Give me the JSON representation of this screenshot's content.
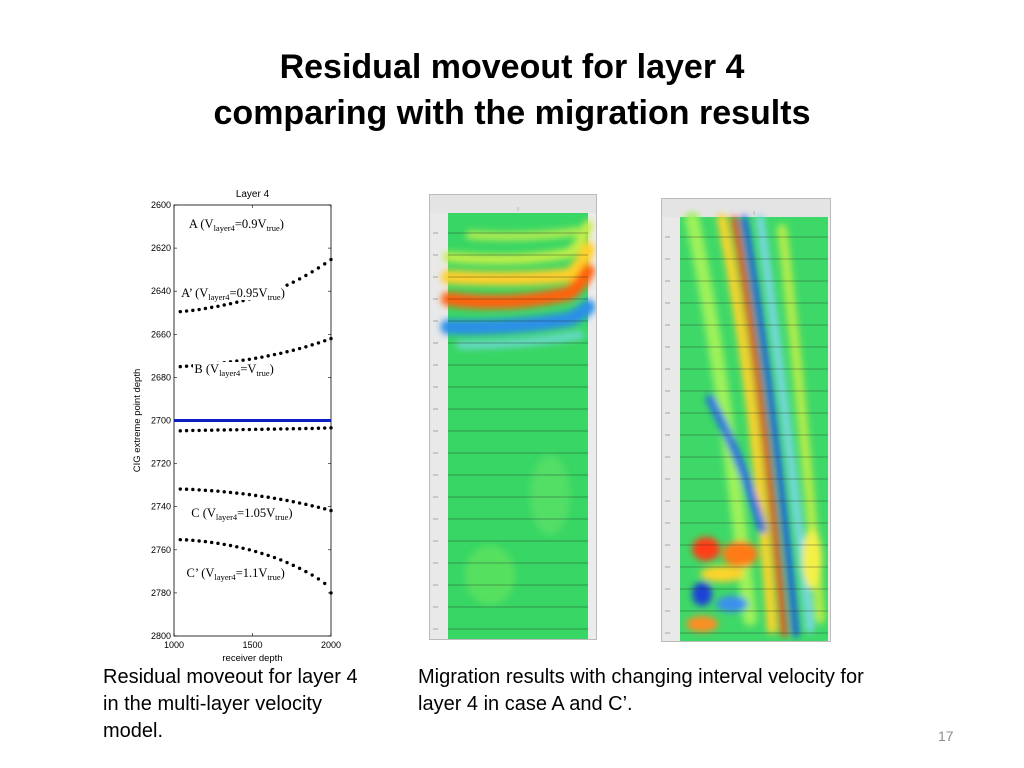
{
  "slide": {
    "title_line1": "Residual moveout for layer 4",
    "title_line2": "comparing with the migration results",
    "page_number": "17"
  },
  "captions": {
    "left": " Residual moveout for layer 4 in the multi-layer velocity model.",
    "right": "Migration results with changing interval velocity for layer 4 in case A and C’."
  },
  "chart_data": {
    "type": "scatter",
    "title": "Layer  4",
    "xlabel": "receiver depth",
    "ylabel": "CIG extreme point depth",
    "xlim": [
      1000,
      2000
    ],
    "ylim": [
      2600,
      2800
    ],
    "y_inverted": true,
    "x_ticks": [
      "1000",
      "1500",
      "2000"
    ],
    "y_ticks": [
      "2600",
      "2620",
      "2640",
      "2660",
      "2680",
      "2700",
      "2720",
      "2740",
      "2760",
      "2780",
      "2800"
    ],
    "reference_line": {
      "y": 2700,
      "color": "#0a1fc4"
    },
    "series": [
      {
        "label": {
          "prefix": "A (V",
          "sub1": "layer4",
          "mid": "=0.9V",
          "sub2": "true",
          "suffix": ")"
        },
        "x": [
          1040,
          1080,
          1120,
          1160,
          1200,
          1240,
          1280,
          1320,
          1360,
          1400,
          1440,
          1480,
          1520,
          1560,
          1600,
          1640,
          1680,
          1720,
          1760,
          1800,
          1840,
          1880,
          1920,
          1960,
          2000
        ],
        "y": [
          2649.5,
          2649.2,
          2648.9,
          2648.5,
          2648.0,
          2647.5,
          2647.0,
          2646.4,
          2645.8,
          2645.1,
          2644.4,
          2643.6,
          2642.7,
          2641.8,
          2640.8,
          2639.7,
          2638.5,
          2637.2,
          2635.8,
          2634.3,
          2632.7,
          2631.0,
          2629.2,
          2627.3,
          2625.3
        ]
      },
      {
        "label": {
          "prefix": "A’ (V",
          "sub1": "layer4",
          "mid": "=0.95V",
          "sub2": "true",
          "suffix": ")"
        },
        "x": [
          1040,
          1080,
          1120,
          1160,
          1200,
          1240,
          1280,
          1320,
          1360,
          1400,
          1440,
          1480,
          1520,
          1560,
          1600,
          1640,
          1680,
          1720,
          1760,
          1800,
          1840,
          1880,
          1920,
          1960,
          2000
        ],
        "y": [
          2675.0,
          2674.8,
          2674.6,
          2674.4,
          2674.1,
          2673.8,
          2673.5,
          2673.2,
          2672.8,
          2672.4,
          2672.0,
          2671.6,
          2671.1,
          2670.6,
          2670.0,
          2669.4,
          2668.8,
          2668.1,
          2667.4,
          2666.6,
          2665.8,
          2664.9,
          2664.0,
          2663.0,
          2662.0
        ]
      },
      {
        "label": {
          "prefix": "B (V",
          "sub1": "layer4",
          "mid": "=V",
          "sub2": "true",
          "suffix": ")"
        },
        "x": [
          1040,
          1080,
          1120,
          1160,
          1200,
          1240,
          1280,
          1320,
          1360,
          1400,
          1440,
          1480,
          1520,
          1560,
          1600,
          1640,
          1680,
          1720,
          1760,
          1800,
          1840,
          1880,
          1920,
          1960,
          2000
        ],
        "y": [
          2704.8,
          2704.7,
          2704.6,
          2704.6,
          2704.5,
          2704.5,
          2704.4,
          2704.4,
          2704.3,
          2704.3,
          2704.2,
          2704.2,
          2704.1,
          2704.1,
          2704.0,
          2704.0,
          2703.9,
          2703.9,
          2703.8,
          2703.8,
          2703.7,
          2703.7,
          2703.6,
          2703.5,
          2703.4
        ]
      },
      {
        "label": {
          "prefix": "C (V",
          "sub1": "layer4",
          "mid": "=1.05V",
          "sub2": "true",
          "suffix": ")"
        },
        "x": [
          1040,
          1080,
          1120,
          1160,
          1200,
          1240,
          1280,
          1320,
          1360,
          1400,
          1440,
          1480,
          1520,
          1560,
          1600,
          1640,
          1680,
          1720,
          1760,
          1800,
          1840,
          1880,
          1920,
          1960,
          2000
        ],
        "y": [
          2731.8,
          2731.9,
          2732.0,
          2732.2,
          2732.4,
          2732.6,
          2732.8,
          2733.1,
          2733.4,
          2733.7,
          2734.0,
          2734.4,
          2734.8,
          2735.2,
          2735.6,
          2736.1,
          2736.6,
          2737.1,
          2737.7,
          2738.3,
          2738.9,
          2739.6,
          2740.3,
          2741.0,
          2741.8
        ]
      },
      {
        "label": {
          "prefix": "C’ (V",
          "sub1": "layer4",
          "mid": "=1.1V",
          "sub2": "true",
          "suffix": ")"
        },
        "x": [
          1040,
          1080,
          1120,
          1160,
          1200,
          1240,
          1280,
          1320,
          1360,
          1400,
          1440,
          1480,
          1520,
          1560,
          1600,
          1640,
          1680,
          1720,
          1760,
          1800,
          1840,
          1880,
          1920,
          1960,
          2000
        ],
        "y": [
          2755.3,
          2755.4,
          2755.6,
          2755.9,
          2756.2,
          2756.6,
          2757.0,
          2757.5,
          2758.0,
          2758.6,
          2759.3,
          2760.0,
          2760.8,
          2761.7,
          2762.6,
          2763.6,
          2764.7,
          2765.9,
          2767.2,
          2768.6,
          2770.1,
          2771.7,
          2773.5,
          2775.6,
          2780.0
        ]
      }
    ]
  },
  "migration_panels": [
    {
      "name": "case-a",
      "colormap": "blue-green-red"
    },
    {
      "name": "case-c-prime",
      "colormap": "blue-green-red"
    }
  ]
}
